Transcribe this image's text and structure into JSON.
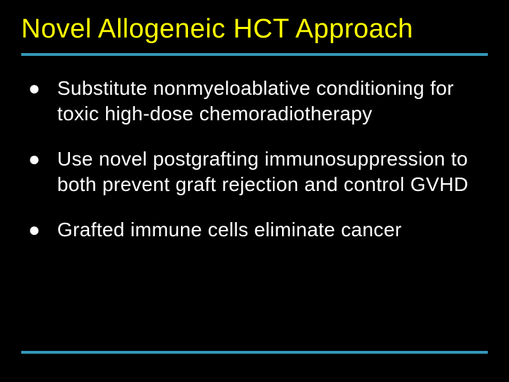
{
  "slide": {
    "title": "Novel Allogeneic HCT Approach",
    "bullets": [
      "Substitute nonmyeloablative conditioning for toxic high-dose chemoradiotherapy",
      "Use novel postgrafting immunosuppression to both prevent graft rejection and control GVHD",
      "Grafted immune cells eliminate cancer"
    ],
    "colors": {
      "background": "#000000",
      "title": "#ffff00",
      "text": "#ffffff",
      "divider": "#3498b8"
    },
    "typography": {
      "title_fontsize": 38,
      "bullet_fontsize": 28,
      "font_family": "Arial"
    },
    "bullet_marker": "●"
  }
}
